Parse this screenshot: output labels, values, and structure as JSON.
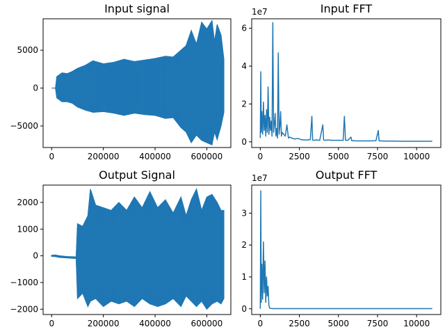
{
  "figure": {
    "background": "#ffffff",
    "line_color": "#1f77b4"
  },
  "chart_data": [
    {
      "id": "input_signal",
      "type": "line",
      "title": "Input signal",
      "xlabel": "",
      "ylabel": "",
      "xlim": [
        -33000,
        693000
      ],
      "ylim": [
        -7850,
        9150
      ],
      "xticks": [
        0,
        200000,
        400000,
        600000
      ],
      "xtick_labels": [
        "0",
        "200000",
        "400000",
        "600000"
      ],
      "yticks": [
        -5000,
        0,
        5000
      ],
      "ytick_labels": [
        "−5000",
        "0",
        "5000"
      ],
      "offset_label": "",
      "grid": false,
      "series": [
        {
          "kind": "envelope",
          "x": [
            0,
            15000,
            20000,
            40000,
            60000,
            80000,
            100000,
            130000,
            160000,
            200000,
            240000,
            280000,
            320000,
            360000,
            400000,
            440000,
            470000,
            500000,
            520000,
            540000,
            560000,
            580000,
            600000,
            620000,
            630000,
            640000,
            655000,
            666000
          ],
          "max": [
            0,
            0,
            1500,
            2000,
            1900,
            2200,
            2600,
            3000,
            3600,
            3200,
            3400,
            3800,
            3500,
            3700,
            3900,
            4200,
            4100,
            5000,
            5600,
            7600,
            5800,
            8700,
            7800,
            8900,
            6100,
            8400,
            7000,
            3800
          ],
          "min": [
            0,
            0,
            -1300,
            -1800,
            -1800,
            -2000,
            -2500,
            -2900,
            -3200,
            -3100,
            -3300,
            -3600,
            -3300,
            -3500,
            -3600,
            -4000,
            -3900,
            -5200,
            -5800,
            -7200,
            -6200,
            -6900,
            -7200,
            -7500,
            -5800,
            -6800,
            -5000,
            -3200
          ]
        }
      ]
    },
    {
      "id": "input_fft",
      "type": "line",
      "title": "Input FFT",
      "xlabel": "",
      "ylabel": "",
      "xlim": [
        -550,
        11550
      ],
      "ylim": [
        -0.3,
        6.5
      ],
      "xticks": [
        0,
        2500,
        5000,
        7500,
        10000
      ],
      "xtick_labels": [
        "0",
        "2500",
        "5000",
        "7500",
        "10000"
      ],
      "yticks": [
        0,
        2,
        4,
        6
      ],
      "ytick_labels": [
        "0",
        "2",
        "4",
        "6"
      ],
      "offset_label": "1e7",
      "grid": false,
      "series": [
        {
          "kind": "line",
          "x": [
            0,
            30,
            60,
            100,
            150,
            200,
            250,
            300,
            350,
            400,
            450,
            500,
            550,
            600,
            650,
            700,
            750,
            800,
            850,
            900,
            950,
            1000,
            1050,
            1100,
            1150,
            1200,
            1250,
            1300,
            1350,
            1400,
            1500,
            1600,
            1700,
            1800,
            1900,
            2000,
            2200,
            2400,
            2600,
            2800,
            3000,
            3200,
            3300,
            3350,
            3400,
            3600,
            3800,
            4000,
            4050,
            4100,
            4300,
            4600,
            5000,
            5300,
            5380,
            5450,
            5600,
            5800,
            5850,
            5900,
            6200,
            6600,
            7000,
            7400,
            7550,
            7600,
            7650,
            8000,
            8500,
            9000,
            9500,
            10000,
            10500,
            11000
          ],
          "y": [
            0.2,
            3.7,
            0.5,
            1.6,
            0.4,
            2.1,
            0.6,
            1.4,
            0.3,
            1.7,
            0.5,
            2.9,
            0.4,
            1.3,
            0.6,
            1.1,
            0.3,
            6.3,
            0.5,
            0.9,
            1.5,
            0.3,
            0.7,
            0.2,
            4.7,
            0.4,
            0.8,
            1.6,
            0.3,
            0.5,
            0.4,
            0.3,
            0.9,
            0.2,
            0.25,
            0.2,
            0.15,
            0.18,
            0.12,
            0.1,
            0.1,
            0.12,
            1.35,
            0.1,
            0.08,
            0.1,
            0.08,
            0.9,
            0.1,
            0.08,
            0.1,
            0.08,
            0.08,
            0.08,
            1.35,
            0.08,
            0.08,
            0.25,
            0.06,
            0.06,
            0.05,
            0.05,
            0.05,
            0.06,
            0.6,
            0.05,
            0.05,
            0.04,
            0.04,
            0.03,
            0.03,
            0.03,
            0.03,
            0.03
          ]
        }
      ]
    },
    {
      "id": "output_signal",
      "type": "line",
      "title": "Output Signal",
      "xlabel": "",
      "ylabel": "",
      "xlim": [
        -33000,
        693000
      ],
      "ylim": [
        -2200,
        2650
      ],
      "xticks": [
        0,
        200000,
        400000,
        600000
      ],
      "xtick_labels": [
        "0",
        "200000",
        "400000",
        "600000"
      ],
      "yticks": [
        -2000,
        -1000,
        0,
        1000,
        2000
      ],
      "ytick_labels": [
        "−2000",
        "−1000",
        "0",
        "1000",
        "2000"
      ],
      "offset_label": "",
      "grid": false,
      "series": [
        {
          "kind": "envelope",
          "x": [
            0,
            15000,
            30000,
            60000,
            90000,
            95000,
            100000,
            120000,
            140000,
            150000,
            170000,
            200000,
            230000,
            260000,
            290000,
            320000,
            350000,
            380000,
            410000,
            440000,
            470000,
            500000,
            520000,
            540000,
            560000,
            580000,
            600000,
            620000,
            640000,
            655000,
            666000
          ],
          "max": [
            20,
            30,
            0,
            -30,
            -40,
            -40,
            1200,
            1100,
            1500,
            2500,
            1900,
            1800,
            1700,
            2000,
            1700,
            2200,
            1800,
            2400,
            1800,
            2100,
            1600,
            2200,
            1500,
            2100,
            2500,
            1700,
            2200,
            2300,
            2000,
            1700,
            1700
          ],
          "min": [
            -20,
            -30,
            -60,
            -80,
            -100,
            -100,
            -1600,
            -1400,
            -1900,
            -1700,
            -1600,
            -1900,
            -1700,
            -1800,
            -1700,
            -1900,
            -1600,
            -1800,
            -1900,
            -1800,
            -1600,
            -1900,
            -1500,
            -1700,
            -1900,
            -1700,
            -2000,
            -1800,
            -1700,
            -1800,
            -1600
          ]
        }
      ]
    },
    {
      "id": "output_fft",
      "type": "line",
      "title": "Output FFT",
      "xlabel": "",
      "ylabel": "",
      "xlim": [
        -550,
        11550
      ],
      "ylim": [
        -0.18,
        3.88
      ],
      "xticks": [
        0,
        2500,
        5000,
        7500,
        10000
      ],
      "xtick_labels": [
        "0",
        "2500",
        "5000",
        "7500",
        "10000"
      ],
      "yticks": [
        0,
        1,
        2,
        3
      ],
      "ytick_labels": [
        "0",
        "1",
        "2",
        "3"
      ],
      "offset_label": "1e7",
      "grid": false,
      "series": [
        {
          "kind": "line",
          "x": [
            0,
            30,
            60,
            100,
            150,
            200,
            250,
            300,
            350,
            400,
            450,
            500,
            550,
            600,
            700,
            800,
            1000,
            2000,
            5000,
            8000,
            11000
          ],
          "y": [
            0.0,
            3.7,
            0.2,
            1.4,
            0.3,
            2.1,
            0.5,
            1.5,
            0.2,
            1.0,
            0.4,
            0.7,
            0.1,
            0.02,
            0.01,
            0.005,
            0.005,
            0.005,
            0.005,
            0.005,
            0.005
          ]
        }
      ]
    }
  ]
}
